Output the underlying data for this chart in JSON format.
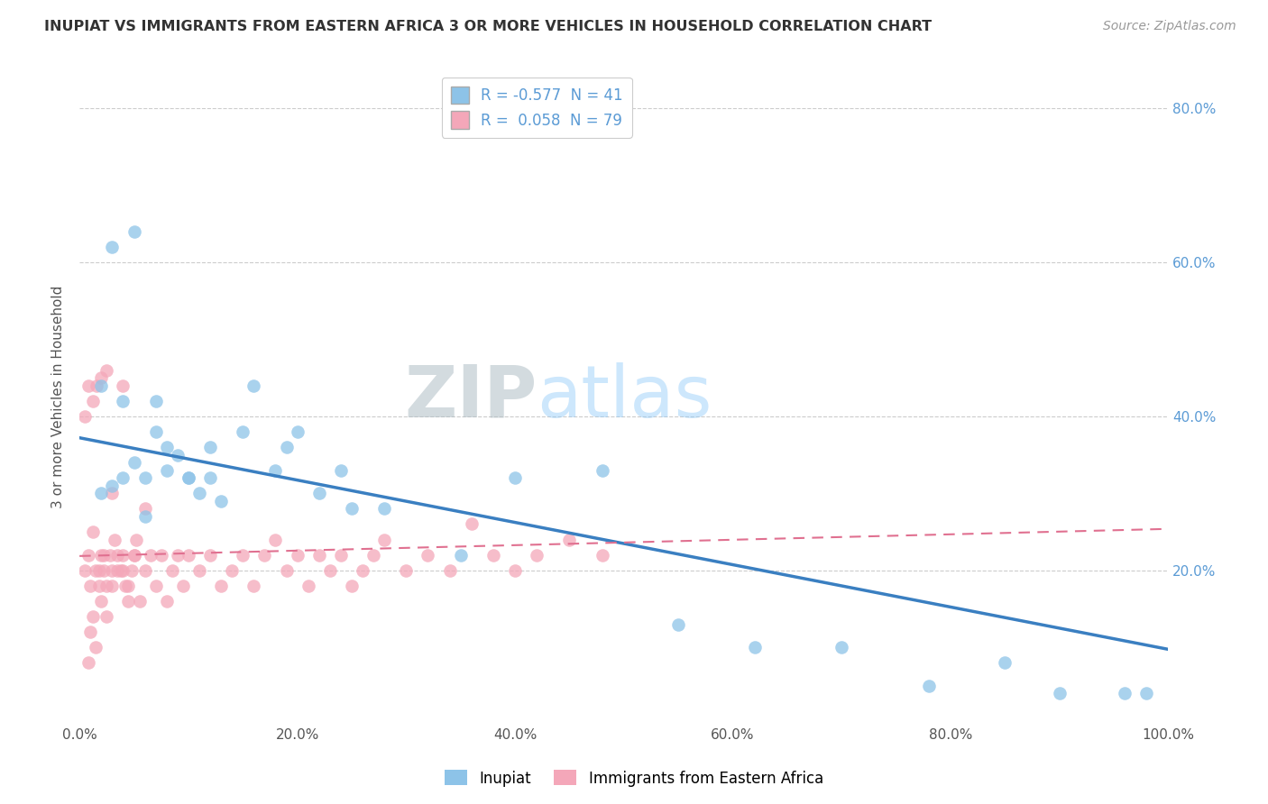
{
  "title": "INUPIAT VS IMMIGRANTS FROM EASTERN AFRICA 3 OR MORE VEHICLES IN HOUSEHOLD CORRELATION CHART",
  "source": "Source: ZipAtlas.com",
  "ylabel": "3 or more Vehicles in Household",
  "legend_label1": "Inupiat",
  "legend_label2": "Immigrants from Eastern Africa",
  "R1": -0.577,
  "N1": 41,
  "R2": 0.058,
  "N2": 79,
  "color1": "#8dc3e8",
  "color2": "#f4a7b9",
  "line_color1": "#3a7fc1",
  "line_color2": "#e07090",
  "xlim": [
    0.0,
    1.0
  ],
  "ylim": [
    0.0,
    0.85
  ],
  "xticks": [
    0.0,
    0.2,
    0.4,
    0.6,
    0.8,
    1.0
  ],
  "yticks": [
    0.2,
    0.4,
    0.6,
    0.8
  ],
  "xticklabels": [
    "0.0%",
    "20.0%",
    "40.0%",
    "60.0%",
    "80.0%",
    "100.0%"
  ],
  "yticklabels": [
    "20.0%",
    "40.0%",
    "60.0%",
    "80.0%"
  ],
  "watermark_zip": "ZIP",
  "watermark_atlas": "atlas",
  "inupiat_x": [
    0.02,
    0.03,
    0.04,
    0.05,
    0.06,
    0.07,
    0.08,
    0.09,
    0.1,
    0.11,
    0.12,
    0.13,
    0.15,
    0.16,
    0.18,
    0.19,
    0.2,
    0.22,
    0.24,
    0.25,
    0.02,
    0.04,
    0.06,
    0.08,
    0.1,
    0.12,
    0.03,
    0.05,
    0.07,
    0.28,
    0.35,
    0.4,
    0.48,
    0.55,
    0.62,
    0.7,
    0.78,
    0.85,
    0.9,
    0.96,
    0.98
  ],
  "inupiat_y": [
    0.3,
    0.31,
    0.32,
    0.34,
    0.32,
    0.38,
    0.33,
    0.35,
    0.32,
    0.3,
    0.36,
    0.29,
    0.38,
    0.44,
    0.33,
    0.36,
    0.38,
    0.3,
    0.33,
    0.28,
    0.44,
    0.42,
    0.27,
    0.36,
    0.32,
    0.32,
    0.62,
    0.64,
    0.42,
    0.28,
    0.22,
    0.32,
    0.33,
    0.13,
    0.1,
    0.1,
    0.05,
    0.08,
    0.04,
    0.04,
    0.04
  ],
  "africa_x": [
    0.005,
    0.008,
    0.01,
    0.012,
    0.015,
    0.018,
    0.02,
    0.022,
    0.025,
    0.028,
    0.03,
    0.032,
    0.035,
    0.038,
    0.04,
    0.042,
    0.045,
    0.048,
    0.05,
    0.052,
    0.01,
    0.015,
    0.02,
    0.025,
    0.03,
    0.035,
    0.008,
    0.012,
    0.018,
    0.022,
    0.04,
    0.045,
    0.05,
    0.055,
    0.06,
    0.065,
    0.07,
    0.075,
    0.08,
    0.085,
    0.09,
    0.095,
    0.1,
    0.11,
    0.12,
    0.13,
    0.14,
    0.15,
    0.16,
    0.17,
    0.18,
    0.19,
    0.2,
    0.21,
    0.22,
    0.23,
    0.24,
    0.25,
    0.26,
    0.27,
    0.28,
    0.3,
    0.32,
    0.34,
    0.36,
    0.38,
    0.4,
    0.42,
    0.45,
    0.48,
    0.005,
    0.008,
    0.012,
    0.016,
    0.02,
    0.025,
    0.03,
    0.04,
    0.06
  ],
  "africa_y": [
    0.2,
    0.22,
    0.18,
    0.25,
    0.2,
    0.18,
    0.22,
    0.2,
    0.18,
    0.22,
    0.2,
    0.24,
    0.22,
    0.2,
    0.22,
    0.18,
    0.16,
    0.2,
    0.22,
    0.24,
    0.12,
    0.1,
    0.16,
    0.14,
    0.18,
    0.2,
    0.08,
    0.14,
    0.2,
    0.22,
    0.2,
    0.18,
    0.22,
    0.16,
    0.2,
    0.22,
    0.18,
    0.22,
    0.16,
    0.2,
    0.22,
    0.18,
    0.22,
    0.2,
    0.22,
    0.18,
    0.2,
    0.22,
    0.18,
    0.22,
    0.24,
    0.2,
    0.22,
    0.18,
    0.22,
    0.2,
    0.22,
    0.18,
    0.2,
    0.22,
    0.24,
    0.2,
    0.22,
    0.2,
    0.26,
    0.22,
    0.2,
    0.22,
    0.24,
    0.22,
    0.4,
    0.44,
    0.42,
    0.44,
    0.45,
    0.46,
    0.3,
    0.44,
    0.28
  ]
}
